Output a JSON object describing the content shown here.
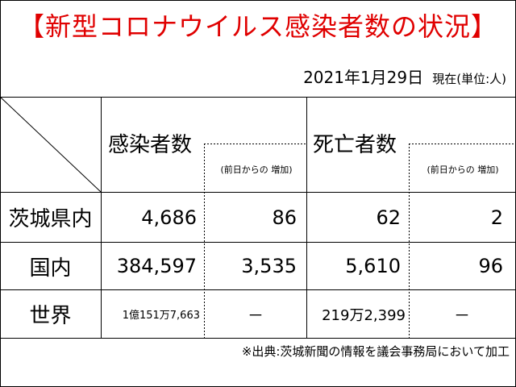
{
  "title": "【新型コロナウイルス感染者数の状況】",
  "date": "2021年1月29日",
  "unit_note": "現在(単位:人)",
  "columns": {
    "infected": "感染者数",
    "infected_change": "(前日からの 増加)",
    "deaths": "死亡者数",
    "deaths_change": "(前日からの 増加)"
  },
  "rows": [
    {
      "label": "茨城県内",
      "infected": "4,686",
      "infected_change": "86",
      "deaths": "62",
      "deaths_change": "2"
    },
    {
      "label": "国内",
      "infected": "384,597",
      "infected_change": "3,535",
      "deaths": "5,610",
      "deaths_change": "96"
    },
    {
      "label": "世界",
      "infected": "1億151万7,663",
      "infected_change": "－",
      "deaths": "219万2,399",
      "deaths_change": "－"
    }
  ],
  "source": "※出典:茨城新聞の情報を議会事務局において加工",
  "colors": {
    "title": "#e00000",
    "lines": "#000000"
  }
}
